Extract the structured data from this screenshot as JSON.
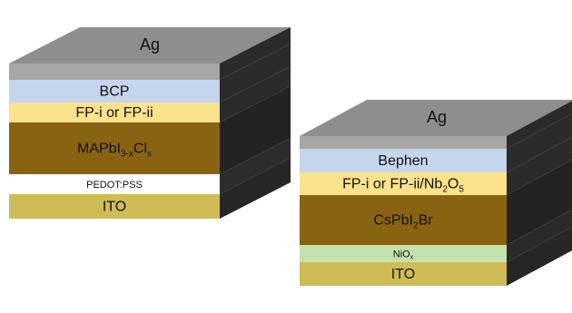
{
  "stacks": [
    {
      "name": "left-device-stack",
      "top_color": "#8e8e8e",
      "layers": [
        {
          "name": "ag",
          "label": "Ag",
          "sub": "",
          "tail": "",
          "sub2": "",
          "color": "#a6a6a6",
          "side": "#2a2a2a"
        },
        {
          "name": "bcp",
          "label": "BCP",
          "sub": "",
          "tail": "",
          "sub2": "",
          "color": "#c5d5ec",
          "side": "#2b2b2b"
        },
        {
          "name": "fp",
          "label": "FP-i or FP-ii",
          "sub": "",
          "tail": "",
          "sub2": "",
          "color": "#fbe28c",
          "side": "#2b2b2b"
        },
        {
          "name": "perovskite",
          "label": "MAPbI",
          "sub": "3-x",
          "tail": "Cl",
          "sub2": "x",
          "color": "#8a6312",
          "side": "#232323"
        },
        {
          "name": "pedot-pss",
          "label": "PEDOT:PSS",
          "sub": "",
          "tail": "",
          "sub2": "",
          "color": "#ffffff",
          "side": "#2c2c2c"
        },
        {
          "name": "ito",
          "label": "ITO",
          "sub": "",
          "tail": "",
          "sub2": "",
          "color": "#cfbc57",
          "side": "#262626"
        }
      ]
    },
    {
      "name": "right-device-stack",
      "top_color": "#8e8e8e",
      "layers": [
        {
          "name": "ag",
          "label": "Ag",
          "sub": "",
          "tail": "",
          "sub2": "",
          "color": "#a6a6a6",
          "side": "#2a2a2a"
        },
        {
          "name": "bephen",
          "label": "Bephen",
          "sub": "",
          "tail": "",
          "sub2": "",
          "color": "#c5d5ec",
          "side": "#2b2b2b"
        },
        {
          "name": "fp-nb2o5",
          "label": "FP-i or FP-ii/Nb",
          "sub": "2",
          "tail": "O",
          "sub2": "5",
          "color": "#fbe28c",
          "side": "#2b2b2b"
        },
        {
          "name": "perovskite",
          "label": "CsPbI",
          "sub": "2",
          "tail": "Br",
          "sub2": "",
          "color": "#8a6312",
          "side": "#232323"
        },
        {
          "name": "niox",
          "label": "NiO",
          "sub": "x",
          "tail": "",
          "sub2": "",
          "color": "#c3e1ae",
          "side": "#2a2a2a"
        },
        {
          "name": "ito",
          "label": "ITO",
          "sub": "",
          "tail": "",
          "sub2": "",
          "color": "#cfbc57",
          "side": "#262626"
        }
      ]
    }
  ]
}
